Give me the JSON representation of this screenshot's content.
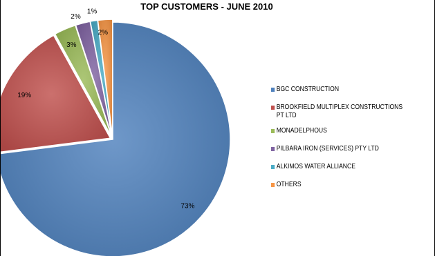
{
  "chart_data": {
    "type": "pie",
    "title": "TOP CUSTOMERS - JUNE 2010",
    "legend_position": "right",
    "slices": [
      {
        "name": "BGC CONSTRUCTION",
        "value": 73,
        "label": "73%",
        "color": "#4F81BD"
      },
      {
        "name": "BROOKFIELD MULTIPLEX CONSTRUCTIONS  PT LTD",
        "value": 19,
        "label": "19%",
        "color": "#C0504D"
      },
      {
        "name": "MONADELPHOUS",
        "value": 3,
        "label": "3%",
        "color": "#9BBB59"
      },
      {
        "name": "PILBARA IRON (SERVICES)  PTY LTD",
        "value": 2,
        "label": "2%",
        "color": "#8064A2"
      },
      {
        "name": "ALKIMOS WATER ALLIANCE",
        "value": 1,
        "label": "1%",
        "color": "#4BACC6"
      },
      {
        "name": "OTHERS",
        "value": 2,
        "label": "2%",
        "color": "#F79646"
      }
    ]
  }
}
